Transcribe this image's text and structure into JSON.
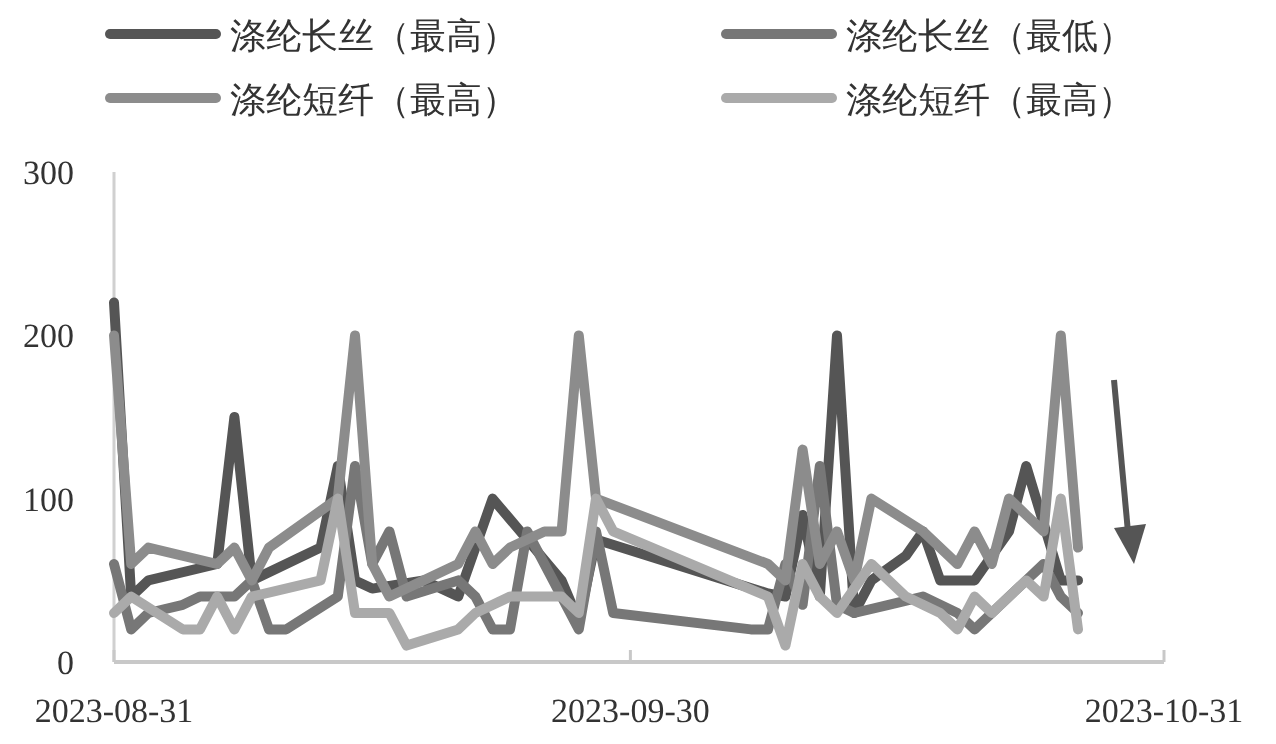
{
  "chart_data": {
    "type": "line",
    "legend": "top",
    "grid": false,
    "line_style": "solid",
    "xlim": [
      "2023-08-31",
      "2023-10-31"
    ],
    "xticks": [
      {
        "value": "2023-08-31",
        "label": "2023-08-31"
      },
      {
        "value": "2023-09-30",
        "label": "2023-09-30"
      },
      {
        "value": "2023-10-31",
        "label": "2023-10-31"
      }
    ],
    "ylim": [
      0,
      300
    ],
    "yticks": [
      0,
      100,
      200,
      300
    ],
    "series": [
      {
        "name": "涤纶长丝（最高）",
        "color": "#555555",
        "x": [
          "2023-08-31",
          "2023-09-01",
          "2023-09-02",
          "2023-09-06",
          "2023-09-07",
          "2023-09-08",
          "2023-09-12",
          "2023-09-13",
          "2023-09-14",
          "2023-09-15",
          "2023-09-18",
          "2023-09-20",
          "2023-09-22",
          "2023-09-26",
          "2023-09-27",
          "2023-09-28",
          "2023-10-08",
          "2023-10-09",
          "2023-10-10",
          "2023-10-11",
          "2023-10-12",
          "2023-10-13",
          "2023-10-14",
          "2023-10-16",
          "2023-10-17",
          "2023-10-18",
          "2023-10-20",
          "2023-10-22",
          "2023-10-23",
          "2023-10-25",
          "2023-10-26"
        ],
        "values": [
          220,
          40,
          50,
          60,
          150,
          50,
          70,
          120,
          50,
          45,
          50,
          40,
          100,
          50,
          25,
          75,
          42,
          40,
          90,
          40,
          200,
          30,
          50,
          65,
          80,
          50,
          50,
          80,
          120,
          50,
          50
        ]
      },
      {
        "name": "涤纶长丝（最低）",
        "color": "#777777",
        "x": [
          "2023-08-31",
          "2023-09-01",
          "2023-09-02",
          "2023-09-04",
          "2023-09-05",
          "2023-09-07",
          "2023-09-08",
          "2023-09-09",
          "2023-09-10",
          "2023-09-13",
          "2023-09-14",
          "2023-09-15",
          "2023-09-16",
          "2023-09-17",
          "2023-09-20",
          "2023-09-21",
          "2023-09-22",
          "2023-09-23",
          "2023-09-24",
          "2023-09-26",
          "2023-09-27",
          "2023-09-28",
          "2023-09-29",
          "2023-10-07",
          "2023-10-08",
          "2023-10-09",
          "2023-10-10",
          "2023-10-11",
          "2023-10-12",
          "2023-10-13",
          "2023-10-15",
          "2023-10-17",
          "2023-10-19",
          "2023-10-20",
          "2023-10-22",
          "2023-10-24",
          "2023-10-25",
          "2023-10-26"
        ],
        "values": [
          60,
          20,
          30,
          35,
          40,
          40,
          50,
          20,
          20,
          40,
          120,
          60,
          80,
          40,
          50,
          40,
          20,
          20,
          80,
          40,
          20,
          80,
          30,
          20,
          20,
          60,
          35,
          120,
          35,
          30,
          35,
          40,
          30,
          20,
          40,
          60,
          40,
          30
        ]
      },
      {
        "name": "涤纶短纤（最高）",
        "color": "#8c8c8c",
        "x": [
          "2023-08-31",
          "2023-09-01",
          "2023-09-02",
          "2023-09-06",
          "2023-09-07",
          "2023-09-08",
          "2023-09-09",
          "2023-09-13",
          "2023-09-14",
          "2023-09-15",
          "2023-09-16",
          "2023-09-20",
          "2023-09-21",
          "2023-09-22",
          "2023-09-23",
          "2023-09-25",
          "2023-09-26",
          "2023-09-27",
          "2023-09-28",
          "2023-10-08",
          "2023-10-09",
          "2023-10-10",
          "2023-10-11",
          "2023-10-12",
          "2023-10-13",
          "2023-10-14",
          "2023-10-17",
          "2023-10-19",
          "2023-10-20",
          "2023-10-21",
          "2023-10-22",
          "2023-10-23",
          "2023-10-24",
          "2023-10-25",
          "2023-10-26"
        ],
        "values": [
          200,
          60,
          70,
          60,
          70,
          50,
          70,
          100,
          200,
          60,
          40,
          60,
          80,
          60,
          70,
          80,
          80,
          200,
          100,
          60,
          50,
          130,
          60,
          80,
          50,
          100,
          80,
          60,
          80,
          60,
          100,
          90,
          80,
          200,
          70
        ]
      },
      {
        "name": "涤纶短纤（最高）",
        "color": "#aaaaaa",
        "x": [
          "2023-08-31",
          "2023-09-01",
          "2023-09-04",
          "2023-09-05",
          "2023-09-06",
          "2023-09-07",
          "2023-09-08",
          "2023-09-12",
          "2023-09-13",
          "2023-09-14",
          "2023-09-16",
          "2023-09-17",
          "2023-09-20",
          "2023-09-21",
          "2023-09-23",
          "2023-09-26",
          "2023-09-27",
          "2023-09-28",
          "2023-09-29",
          "2023-10-08",
          "2023-10-09",
          "2023-10-10",
          "2023-10-11",
          "2023-10-12",
          "2023-10-14",
          "2023-10-16",
          "2023-10-18",
          "2023-10-19",
          "2023-10-20",
          "2023-10-21",
          "2023-10-23",
          "2023-10-24",
          "2023-10-25",
          "2023-10-26"
        ],
        "values": [
          30,
          40,
          20,
          20,
          40,
          20,
          40,
          50,
          100,
          30,
          30,
          10,
          20,
          30,
          40,
          40,
          30,
          100,
          80,
          40,
          10,
          60,
          40,
          30,
          60,
          40,
          30,
          20,
          40,
          30,
          50,
          40,
          100,
          20
        ]
      }
    ]
  }
}
